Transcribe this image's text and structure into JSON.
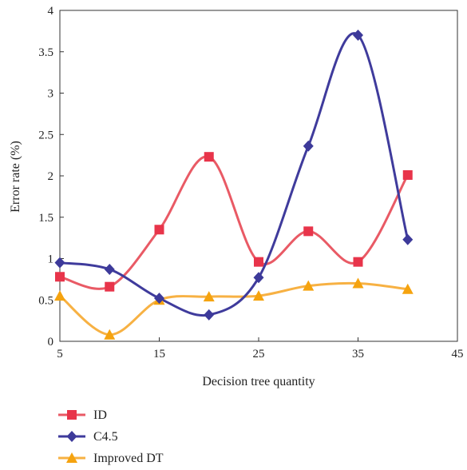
{
  "chart_data": {
    "type": "line",
    "title": "",
    "xlabel": "Decision tree quantity",
    "ylabel": "Error rate (%)",
    "xlim": [
      5,
      45
    ],
    "ylim": [
      0,
      4
    ],
    "xticks": [
      5,
      15,
      25,
      35,
      45
    ],
    "yticks": [
      0,
      0.5,
      1,
      1.5,
      2,
      2.5,
      3,
      3.5,
      4
    ],
    "ytick_labels": [
      "0",
      "0.5",
      "1",
      "1.5",
      "2",
      "2.5",
      "3",
      "3.5",
      "4"
    ],
    "grid": false,
    "legend_position": "bottom-left",
    "series": [
      {
        "name": "ID",
        "color": "#e95a65",
        "marker_color": "#e8344a",
        "marker": "square",
        "x": [
          5,
          10,
          15,
          20,
          25,
          30,
          35,
          40
        ],
        "y": [
          0.78,
          0.66,
          1.35,
          2.23,
          0.96,
          1.33,
          0.96,
          2.01
        ]
      },
      {
        "name": "C4.5",
        "color": "#3f3b9c",
        "marker_color": "#3d3a9a",
        "marker": "diamond",
        "x": [
          5,
          10,
          15,
          20,
          25,
          30,
          35,
          40
        ],
        "y": [
          0.95,
          0.87,
          0.52,
          0.32,
          0.77,
          2.36,
          3.7,
          1.23
        ]
      },
      {
        "name": "Improved DT",
        "color": "#f7b143",
        "marker_color": "#f5a30f",
        "marker": "triangle",
        "x": [
          5,
          10,
          15,
          20,
          25,
          30,
          35,
          40
        ],
        "y": [
          0.55,
          0.08,
          0.5,
          0.54,
          0.55,
          0.67,
          0.7,
          0.63
        ]
      }
    ]
  }
}
